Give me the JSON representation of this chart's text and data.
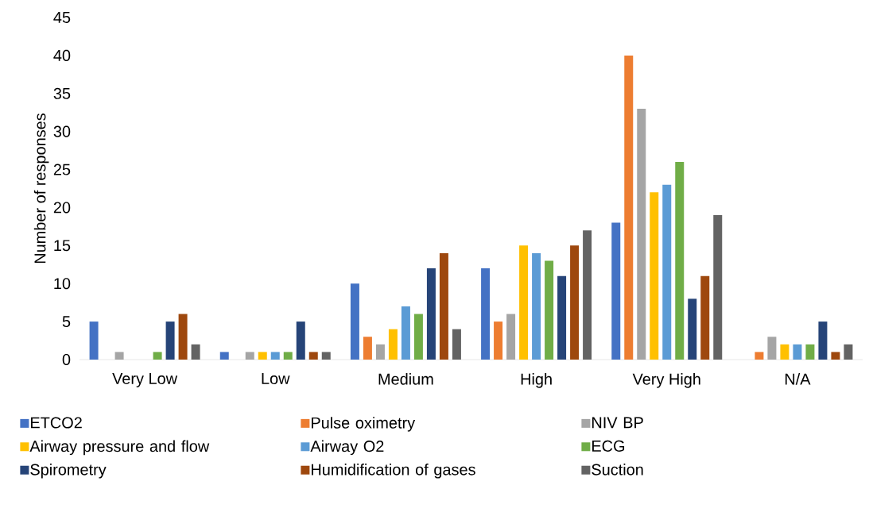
{
  "chart_data": {
    "type": "bar",
    "ylabel": "Number of responses",
    "categories": [
      "Very Low",
      "Low",
      "Medium",
      "High",
      "Very High",
      "N/A"
    ],
    "series": [
      {
        "name": "ETCO2",
        "color": "#4472c4",
        "values": [
          5,
          1,
          10,
          12,
          18,
          0
        ]
      },
      {
        "name": "Pulse oximetry",
        "color": "#ed7d31",
        "values": [
          0,
          0,
          3,
          5,
          40,
          1
        ]
      },
      {
        "name": "NIV BP",
        "color": "#a5a5a5",
        "values": [
          1,
          1,
          2,
          6,
          33,
          3
        ]
      },
      {
        "name": "Airway pressure and flow",
        "color": "#ffc000",
        "values": [
          0,
          1,
          4,
          15,
          22,
          2
        ]
      },
      {
        "name": "Airway O2",
        "color": "#5b9bd5",
        "values": [
          0,
          1,
          7,
          14,
          23,
          2
        ]
      },
      {
        "name": "ECG",
        "color": "#70ad47",
        "values": [
          1,
          1,
          6,
          13,
          26,
          2
        ]
      },
      {
        "name": "Spirometry",
        "color": "#264478",
        "values": [
          5,
          5,
          12,
          11,
          8,
          5
        ]
      },
      {
        "name": "Humidification of gases",
        "color": "#9e480e",
        "values": [
          6,
          1,
          14,
          15,
          11,
          1
        ]
      },
      {
        "name": "Suction",
        "color": "#636363",
        "values": [
          2,
          1,
          4,
          17,
          19,
          2
        ]
      }
    ],
    "ylim": [
      0,
      45
    ],
    "yticks": [
      0,
      5,
      10,
      15,
      20,
      25,
      30,
      35,
      40,
      45
    ],
    "grid": false,
    "legend": "bottom"
  }
}
